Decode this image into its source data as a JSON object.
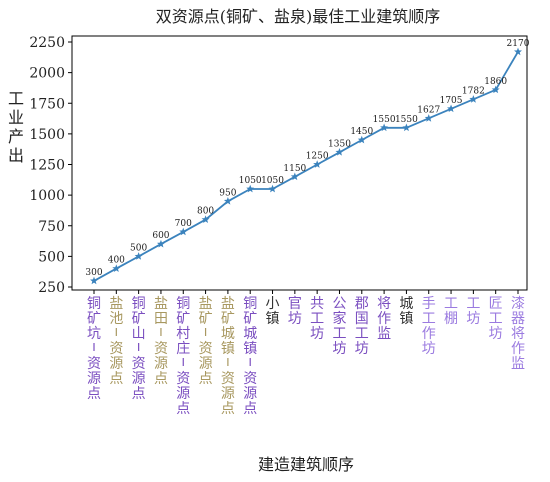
{
  "chart_data": {
    "type": "line",
    "title": "双资源点(铜矿、盐泉)最佳工业建筑顺序",
    "xlabel": "建造建筑顺序",
    "ylabel": "工业产出",
    "ylim": [
      250,
      2250
    ],
    "yticks": [
      250,
      500,
      750,
      1000,
      1250,
      1500,
      1750,
      2000,
      2250
    ],
    "grid": false,
    "line_color": "#3b83bd",
    "categories": [
      {
        "label": "铜矿坑-资源点",
        "color": "#7b4fc0"
      },
      {
        "label": "盐池-资源点",
        "color": "#a89860"
      },
      {
        "label": "铜矿山-资源点",
        "color": "#7b4fc0"
      },
      {
        "label": "盐田-资源点",
        "color": "#a89860"
      },
      {
        "label": "铜矿村庄-资源点",
        "color": "#7b4fc0"
      },
      {
        "label": "盐矿-资源点",
        "color": "#a89860"
      },
      {
        "label": "盐矿城镇-资源点",
        "color": "#a89860"
      },
      {
        "label": "铜矿城镇-资源点",
        "color": "#7b4fc0"
      },
      {
        "label": "小镇",
        "color": "#333333"
      },
      {
        "label": "官坊",
        "color": "#7b4fc0"
      },
      {
        "label": "共工坊",
        "color": "#7b4fc0"
      },
      {
        "label": "公家工坊",
        "color": "#7b4fc0"
      },
      {
        "label": "郡国工坊",
        "color": "#7b4fc0"
      },
      {
        "label": "将作监",
        "color": "#7b4fc0"
      },
      {
        "label": "城镇",
        "color": "#333333"
      },
      {
        "label": "手工作坊",
        "color": "#9b7be0"
      },
      {
        "label": "工棚",
        "color": "#9b7be0"
      },
      {
        "label": "工坊",
        "color": "#9b7be0"
      },
      {
        "label": "匠工坊",
        "color": "#9b7be0"
      },
      {
        "label": "漆器将作监",
        "color": "#9b7be0"
      }
    ],
    "values": [
      300,
      400,
      500,
      600,
      700,
      800,
      950,
      1050,
      1050,
      1150,
      1250,
      1350,
      1450,
      1550,
      1550,
      1627,
      1705,
      1782,
      1860,
      2170
    ]
  }
}
